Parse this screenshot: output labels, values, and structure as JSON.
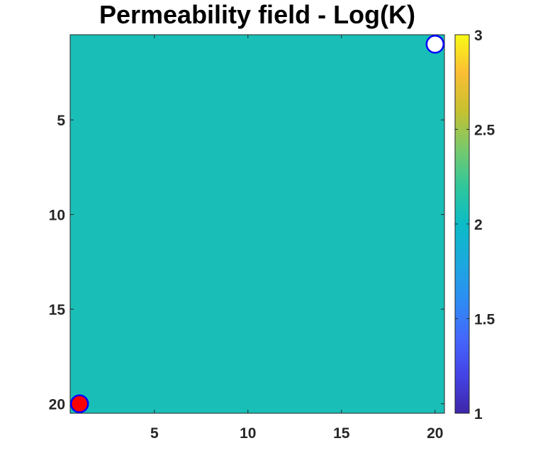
{
  "chart_data": {
    "type": "heatmap",
    "title": "Permeability field - Log(K)",
    "xlabel": "",
    "ylabel": "",
    "grid_size": [
      20,
      20
    ],
    "xlim": [
      0.5,
      20.5
    ],
    "ylim": [
      0.5,
      20.5
    ],
    "y_reversed": true,
    "x_ticks": [
      5,
      10,
      15,
      20
    ],
    "y_ticks": [
      5,
      10,
      15,
      20
    ],
    "uniform_value": 2,
    "field_color": "#19bfb7",
    "colormap": "parula",
    "colorbar": {
      "range": [
        1,
        3
      ],
      "ticks": [
        "1",
        "1.5",
        "2",
        "2.5",
        "3"
      ],
      "tick_values": [
        1,
        1.5,
        2,
        2.5,
        3
      ]
    },
    "markers": [
      {
        "name": "injector",
        "x": 1,
        "y": 20,
        "fill": "#ff0000",
        "edge": "#0000ff"
      },
      {
        "name": "producer",
        "x": 20,
        "y": 1,
        "fill": "#ffffff",
        "edge": "#0000ff"
      }
    ],
    "grid": false
  }
}
